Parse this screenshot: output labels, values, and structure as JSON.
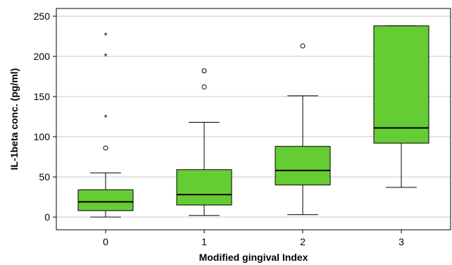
{
  "chart_data": {
    "type": "box",
    "title": "",
    "xlabel": "Modified gingival Index",
    "ylabel": "IL-1beta conc. (pg/ml)",
    "categories": [
      "0",
      "1",
      "2",
      "3"
    ],
    "ylim": [
      -10,
      260
    ],
    "yticks": [
      0,
      50,
      100,
      150,
      200,
      250
    ],
    "grid": "horizontal",
    "box_color": "#66cc33",
    "boxes": [
      {
        "category": "0",
        "whisker_low": 0,
        "q1": 8,
        "median": 19,
        "q3": 34,
        "whisker_high": 55,
        "outliers": [
          86
        ],
        "extremes": [
          126,
          202,
          228
        ]
      },
      {
        "category": "1",
        "whisker_low": 2,
        "q1": 15,
        "median": 28,
        "q3": 59,
        "whisker_high": 118,
        "outliers": [
          162,
          182
        ],
        "extremes": []
      },
      {
        "category": "2",
        "whisker_low": 3,
        "q1": 40,
        "median": 58,
        "q3": 88,
        "whisker_high": 151,
        "outliers": [
          213
        ],
        "extremes": []
      },
      {
        "category": "3",
        "whisker_low": 37,
        "q1": 92,
        "median": 111,
        "q3": 238,
        "whisker_high": 238,
        "outliers": [],
        "extremes": []
      }
    ]
  }
}
